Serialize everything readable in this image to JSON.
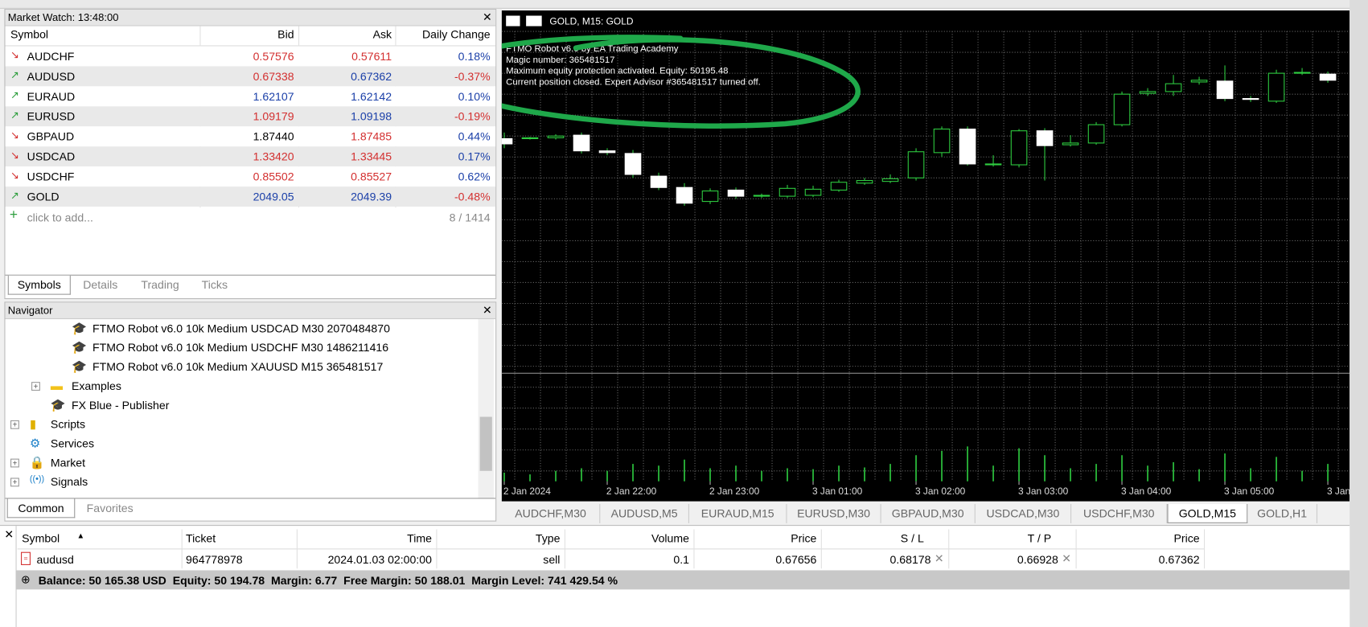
{
  "market_watch": {
    "title": "Market Watch: 13:48:00",
    "columns": [
      "Symbol",
      "Bid",
      "Ask",
      "Daily Change"
    ],
    "rows": [
      {
        "symbol": "AUDCHF",
        "bid": "0.57576",
        "ask": "0.57611",
        "change": "0.18%",
        "arrow": "down",
        "bid_color": "#d32f2f",
        "ask_color": "#d32f2f",
        "change_color": "#1a3fa8"
      },
      {
        "symbol": "AUDUSD",
        "bid": "0.67338",
        "ask": "0.67362",
        "change": "-0.37%",
        "arrow": "up",
        "bid_color": "#d32f2f",
        "ask_color": "#1a3fa8",
        "change_color": "#d32f2f"
      },
      {
        "symbol": "EURAUD",
        "bid": "1.62107",
        "ask": "1.62142",
        "change": "0.10%",
        "arrow": "up",
        "bid_color": "#1a3fa8",
        "ask_color": "#1a3fa8",
        "change_color": "#1a3fa8"
      },
      {
        "symbol": "EURUSD",
        "bid": "1.09179",
        "ask": "1.09198",
        "change": "-0.19%",
        "arrow": "up",
        "bid_color": "#d32f2f",
        "ask_color": "#1a3fa8",
        "change_color": "#d32f2f"
      },
      {
        "symbol": "GBPAUD",
        "bid": "1.87440",
        "ask": "1.87485",
        "change": "0.44%",
        "arrow": "down",
        "bid_color": "#000000",
        "ask_color": "#d32f2f",
        "change_color": "#1a3fa8"
      },
      {
        "symbol": "USDCAD",
        "bid": "1.33420",
        "ask": "1.33445",
        "change": "0.17%",
        "arrow": "down",
        "bid_color": "#d32f2f",
        "ask_color": "#d32f2f",
        "change_color": "#1a3fa8"
      },
      {
        "symbol": "USDCHF",
        "bid": "0.85502",
        "ask": "0.85527",
        "change": "0.62%",
        "arrow": "down",
        "bid_color": "#d32f2f",
        "ask_color": "#d32f2f",
        "change_color": "#1a3fa8"
      },
      {
        "symbol": "GOLD",
        "bid": "2049.05",
        "ask": "2049.39",
        "change": "-0.48%",
        "arrow": "up",
        "bid_color": "#1a3fa8",
        "ask_color": "#1a3fa8",
        "change_color": "#d32f2f"
      }
    ],
    "add_label": "click to add...",
    "count": "8 / 1414",
    "tabs": [
      "Symbols",
      "Details",
      "Trading",
      "Ticks"
    ]
  },
  "navigator": {
    "title": "Navigator",
    "items": [
      {
        "label": "FTMO Robot v6.0 10k Medium USDCAD M30 2070484870",
        "level": 3,
        "icon": "ea"
      },
      {
        "label": "FTMO Robot v6.0 10k Medium USDCHF M30 1486211416",
        "level": 3,
        "icon": "ea"
      },
      {
        "label": "FTMO Robot v6.0 10k Medium XAUUSD M15 365481517",
        "level": 3,
        "icon": "ea"
      },
      {
        "label": "Examples",
        "level": 2,
        "icon": "folder"
      },
      {
        "label": "FX Blue - Publisher",
        "level": 2,
        "icon": "ea"
      },
      {
        "label": "Scripts",
        "level": 1,
        "icon": "scripts"
      },
      {
        "label": "Services",
        "level": 1,
        "icon": "services"
      },
      {
        "label": "Market",
        "level": 1,
        "icon": "market"
      },
      {
        "label": "Signals",
        "level": 1,
        "icon": "signals"
      }
    ],
    "tabs": [
      "Common",
      "Favorites"
    ]
  },
  "chart_data": {
    "type": "candlestick",
    "title": "GOLD, M15:  GOLD",
    "info": [
      "FTMO Robot v6.0 by EA Trading Academy",
      "Magic number: 365481517",
      "Maximum equity protection activated. Equity: 50195.48",
      "Current position closed. Expert Advisor #365481517 turned off."
    ],
    "categories": [
      "2 Jan 2024",
      null,
      null,
      null,
      "2 Jan 22:00",
      null,
      null,
      null,
      "2 Jan 23:00",
      null,
      null,
      null,
      "3 Jan 01:00",
      null,
      null,
      null,
      "3 Jan 02:00",
      null,
      null,
      null,
      "3 Jan 03:00",
      null,
      null,
      null,
      "3 Jan 04:00",
      null,
      null,
      null,
      "3 Jan 05:00",
      null,
      null,
      null,
      "3 Jan"
    ],
    "open": [
      2066.9,
      2067.0,
      2067.0,
      2067.3,
      2065.5,
      2065.2,
      2062.6,
      2061.3,
      2059.7,
      2061.0,
      2060.3,
      2060.3,
      2060.4,
      2061.0,
      2061.8,
      2062.0,
      2062.4,
      2065.3,
      2068.0,
      2063.9,
      2063.9,
      2067.8,
      2066.2,
      2066.4,
      2068.5,
      2072.1,
      2072.3,
      2073.4,
      2073.5,
      2071.5,
      2071.2,
      2074.4,
      2074.3
    ],
    "high": [
      2067.6,
      2067.1,
      2067.4,
      2067.6,
      2065.8,
      2065.6,
      2063.0,
      2061.8,
      2061.2,
      2061.3,
      2060.6,
      2061.6,
      2061.5,
      2062.2,
      2062.4,
      2062.8,
      2065.8,
      2068.3,
      2068.3,
      2065.0,
      2068.0,
      2068.1,
      2067.3,
      2068.8,
      2072.3,
      2072.7,
      2074.2,
      2074.0,
      2075.3,
      2071.8,
      2074.8,
      2075.0,
      2074.6
    ],
    "low": [
      2065.8,
      2066.8,
      2066.8,
      2065.2,
      2065.0,
      2062.4,
      2061.0,
      2059.2,
      2059.4,
      2060.0,
      2060.1,
      2060.1,
      2060.2,
      2060.8,
      2061.6,
      2061.8,
      2062.1,
      2064.8,
      2063.8,
      2063.7,
      2063.6,
      2062.1,
      2066.0,
      2066.2,
      2068.3,
      2071.8,
      2071.8,
      2073.1,
      2071.2,
      2071.1,
      2071.0,
      2074.2,
      2073.3
    ],
    "close": [
      2066.3,
      2067.0,
      2067.2,
      2065.5,
      2065.3,
      2062.8,
      2061.3,
      2059.5,
      2060.9,
      2060.3,
      2060.4,
      2061.2,
      2061.1,
      2061.9,
      2062.1,
      2062.3,
      2065.4,
      2068.0,
      2064.0,
      2064.0,
      2067.8,
      2066.1,
      2066.4,
      2068.5,
      2072.0,
      2072.3,
      2073.2,
      2073.6,
      2071.5,
      2071.4,
      2074.4,
      2074.5,
      2073.6
    ],
    "volume": [
      10,
      8,
      12,
      15,
      12,
      20,
      18,
      25,
      15,
      18,
      12,
      15,
      14,
      18,
      16,
      20,
      30,
      35,
      40,
      18,
      38,
      30,
      15,
      20,
      30,
      18,
      22,
      14,
      32,
      15,
      28,
      12,
      20
    ],
    "ylim": [
      2040,
      2081.6
    ],
    "y2lim": [
      0,
      120
    ],
    "up_color": "#000000",
    "down_color": "#ffffff",
    "wick_color": "#2ecc40",
    "volume_color": "#2ecc40",
    "grid": true
  },
  "chart_tabs": {
    "items": [
      "AUDCHF,M30",
      "AUDUSD,M5",
      "EURAUD,M15",
      "EURUSD,M30",
      "GBPAUD,M30",
      "USDCAD,M30",
      "USDCHF,M30",
      "GOLD,M15",
      "GOLD,H1"
    ],
    "active": 7
  },
  "trade": {
    "columns": [
      "Symbol",
      "Ticket",
      "Time",
      "Type",
      "Volume",
      "Price",
      "S / L",
      "T / P",
      "Price"
    ],
    "row": [
      "audusd",
      "964778978",
      "2024.01.03 02:00:00",
      "sell",
      "0.1",
      "0.67656",
      "0.68178",
      "0.66928",
      "0.67362"
    ],
    "balance": "Balance: 50 165.38 USD  Equity: 50 194.78  Margin: 6.77  Free Margin: 50 188.01  Margin Level: 741 429.54 %"
  }
}
